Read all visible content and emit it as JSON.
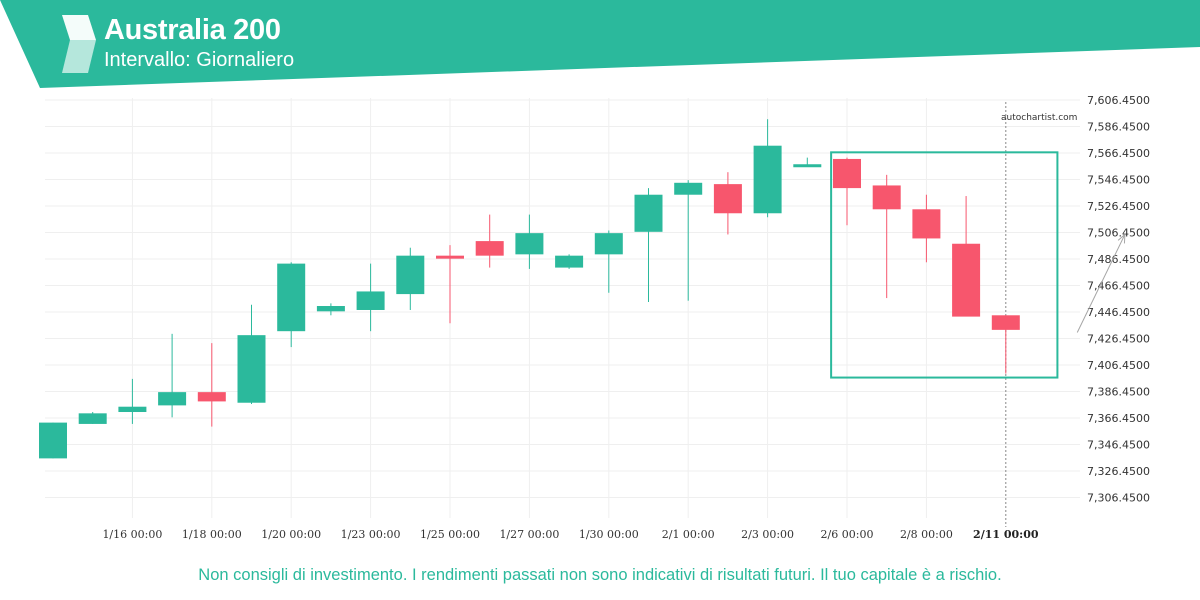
{
  "header": {
    "title": "Australia 200",
    "subtitle": "Intervallo: Giornaliero",
    "bg_color": "#2bb99c",
    "logo_icon": "autochartist-logo-icon"
  },
  "watermark": "autochartist.com",
  "disclaimer": "Non consigli di investimento. I rendimenti passati non sono indicativi di risultati futuri. Il tuo capitale è a rischio.",
  "colors": {
    "up": "#2bb99c",
    "down": "#f7566d",
    "pattern_box": "#2bb99c",
    "projection_arrow": "#a6a6a6"
  },
  "chart_data": {
    "type": "candlestick",
    "y_ticks": [
      "7,306.4500",
      "7,326.4500",
      "7,346.4500",
      "7,366.4500",
      "7,386.4500",
      "7,406.4500",
      "7,426.4500",
      "7,446.4500",
      "7,466.4500",
      "7,486.4500",
      "7,506.4500",
      "7,526.4500",
      "7,546.4500",
      "7,566.4500",
      "7,586.4500",
      "7,606.4500"
    ],
    "ylim": [
      7291,
      7608
    ],
    "x_ticks": [
      {
        "label": "1/16 00:00",
        "index": 2
      },
      {
        "label": "1/18 00:00",
        "index": 4
      },
      {
        "label": "1/20 00:00",
        "index": 6
      },
      {
        "label": "1/23 00:00",
        "index": 8
      },
      {
        "label": "1/25 00:00",
        "index": 10
      },
      {
        "label": "1/27 00:00",
        "index": 12
      },
      {
        "label": "1/30 00:00",
        "index": 14
      },
      {
        "label": "2/1 00:00",
        "index": 16
      },
      {
        "label": "2/3 00:00",
        "index": 18
      },
      {
        "label": "2/6 00:00",
        "index": 20
      },
      {
        "label": "2/8 00:00",
        "index": 22
      },
      {
        "label": "2/11 00:00",
        "index": 24,
        "current": true
      }
    ],
    "candles": [
      {
        "o": 7336,
        "h": 7363,
        "l": 7336,
        "c": 7363
      },
      {
        "o": 7362,
        "h": 7371,
        "l": 7362,
        "c": 7370
      },
      {
        "o": 7371,
        "h": 7396,
        "l": 7362,
        "c": 7375
      },
      {
        "o": 7376,
        "h": 7430,
        "l": 7367,
        "c": 7386
      },
      {
        "o": 7386,
        "h": 7423,
        "l": 7360,
        "c": 7379
      },
      {
        "o": 7378,
        "h": 7452,
        "l": 7377,
        "c": 7429
      },
      {
        "o": 7432,
        "h": 7484,
        "l": 7420,
        "c": 7483
      },
      {
        "o": 7447,
        "h": 7453,
        "l": 7444,
        "c": 7451
      },
      {
        "o": 7448,
        "h": 7483,
        "l": 7432,
        "c": 7462
      },
      {
        "o": 7460,
        "h": 7495,
        "l": 7448,
        "c": 7489
      },
      {
        "o": 7489,
        "h": 7497,
        "l": 7438,
        "c": 7488
      },
      {
        "o": 7500,
        "h": 7520,
        "l": 7480,
        "c": 7489
      },
      {
        "o": 7490,
        "h": 7520,
        "l": 7479,
        "c": 7506
      },
      {
        "o": 7480,
        "h": 7490,
        "l": 7479,
        "c": 7489
      },
      {
        "o": 7490,
        "h": 7508,
        "l": 7461,
        "c": 7506
      },
      {
        "o": 7507,
        "h": 7540,
        "l": 7454,
        "c": 7535
      },
      {
        "o": 7535,
        "h": 7546,
        "l": 7455,
        "c": 7544
      },
      {
        "o": 7543,
        "h": 7552,
        "l": 7505,
        "c": 7521
      },
      {
        "o": 7521,
        "h": 7592,
        "l": 7518,
        "c": 7572
      },
      {
        "o": 7556,
        "h": 7563,
        "l": 7556,
        "c": 7558
      },
      {
        "o": 7562,
        "h": 7563,
        "l": 7512,
        "c": 7540
      },
      {
        "o": 7542,
        "h": 7550,
        "l": 7457,
        "c": 7524
      },
      {
        "o": 7524,
        "h": 7535,
        "l": 7484,
        "c": 7502
      },
      {
        "o": 7498,
        "h": 7534,
        "l": 7445,
        "c": 7443
      },
      {
        "o": 7444,
        "h": 7444,
        "l": 7400,
        "c": 7433
      }
    ],
    "pattern_box": {
      "start_index": 19.6,
      "end_index": 25.3,
      "top": 7567,
      "bottom": 7397
    },
    "projection": {
      "from": {
        "index": 25.8,
        "value": 7431
      },
      "to": {
        "index": 27,
        "value": 7505
      }
    }
  }
}
